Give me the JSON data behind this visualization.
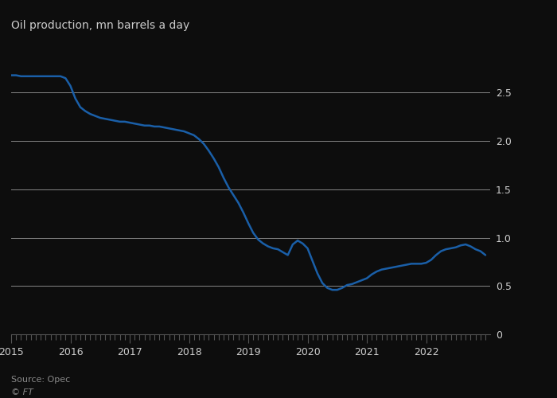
{
  "title": "Oil production, mn barrels a day",
  "source": "Source: Opec",
  "credit": "© FT",
  "line_color": "#1a5fa8",
  "background_color": "#0d0d0d",
  "plot_bg_color": "#0d0d0d",
  "grid_color": "#ffffff",
  "text_color": "#cccccc",
  "title_color": "#cccccc",
  "ylim": [
    0,
    2.8
  ],
  "yticks": [
    0,
    0.5,
    1.0,
    1.5,
    2.0,
    2.5
  ],
  "xlim_start": 2015.0,
  "xlim_end": 2023.08,
  "xtick_labels": [
    "2015",
    "2016",
    "2017",
    "2018",
    "2019",
    "2020",
    "2021",
    "2022"
  ],
  "xtick_positions": [
    2015,
    2016,
    2017,
    2018,
    2019,
    2020,
    2021,
    2022
  ],
  "data": {
    "x": [
      2015.0,
      2015.083,
      2015.167,
      2015.25,
      2015.333,
      2015.417,
      2015.5,
      2015.583,
      2015.667,
      2015.75,
      2015.833,
      2015.917,
      2016.0,
      2016.083,
      2016.167,
      2016.25,
      2016.333,
      2016.417,
      2016.5,
      2016.583,
      2016.667,
      2016.75,
      2016.833,
      2016.917,
      2017.0,
      2017.083,
      2017.167,
      2017.25,
      2017.333,
      2017.417,
      2017.5,
      2017.583,
      2017.667,
      2017.75,
      2017.833,
      2017.917,
      2018.0,
      2018.083,
      2018.167,
      2018.25,
      2018.333,
      2018.417,
      2018.5,
      2018.583,
      2018.667,
      2018.75,
      2018.833,
      2018.917,
      2019.0,
      2019.083,
      2019.167,
      2019.25,
      2019.333,
      2019.417,
      2019.5,
      2019.583,
      2019.667,
      2019.75,
      2019.833,
      2019.917,
      2020.0,
      2020.083,
      2020.167,
      2020.25,
      2020.333,
      2020.417,
      2020.5,
      2020.583,
      2020.667,
      2020.75,
      2020.833,
      2020.917,
      2021.0,
      2021.083,
      2021.167,
      2021.25,
      2021.333,
      2021.417,
      2021.5,
      2021.583,
      2021.667,
      2021.75,
      2021.833,
      2021.917,
      2022.0,
      2022.083,
      2022.167,
      2022.25,
      2022.333,
      2022.417,
      2022.5,
      2022.583,
      2022.667,
      2022.75,
      2022.833,
      2022.917,
      2023.0
    ],
    "y": [
      2.68,
      2.68,
      2.67,
      2.67,
      2.67,
      2.67,
      2.67,
      2.67,
      2.67,
      2.67,
      2.67,
      2.65,
      2.57,
      2.44,
      2.35,
      2.31,
      2.28,
      2.26,
      2.24,
      2.23,
      2.22,
      2.21,
      2.2,
      2.2,
      2.19,
      2.18,
      2.17,
      2.16,
      2.16,
      2.15,
      2.15,
      2.14,
      2.13,
      2.12,
      2.11,
      2.1,
      2.08,
      2.06,
      2.02,
      1.97,
      1.9,
      1.82,
      1.73,
      1.62,
      1.52,
      1.44,
      1.36,
      1.26,
      1.15,
      1.05,
      0.98,
      0.94,
      0.91,
      0.89,
      0.88,
      0.85,
      0.82,
      0.93,
      0.97,
      0.94,
      0.89,
      0.76,
      0.63,
      0.53,
      0.48,
      0.46,
      0.46,
      0.48,
      0.51,
      0.52,
      0.54,
      0.56,
      0.58,
      0.62,
      0.65,
      0.67,
      0.68,
      0.69,
      0.7,
      0.71,
      0.72,
      0.73,
      0.73,
      0.73,
      0.74,
      0.77,
      0.82,
      0.86,
      0.88,
      0.89,
      0.9,
      0.92,
      0.93,
      0.91,
      0.88,
      0.86,
      0.82
    ]
  }
}
